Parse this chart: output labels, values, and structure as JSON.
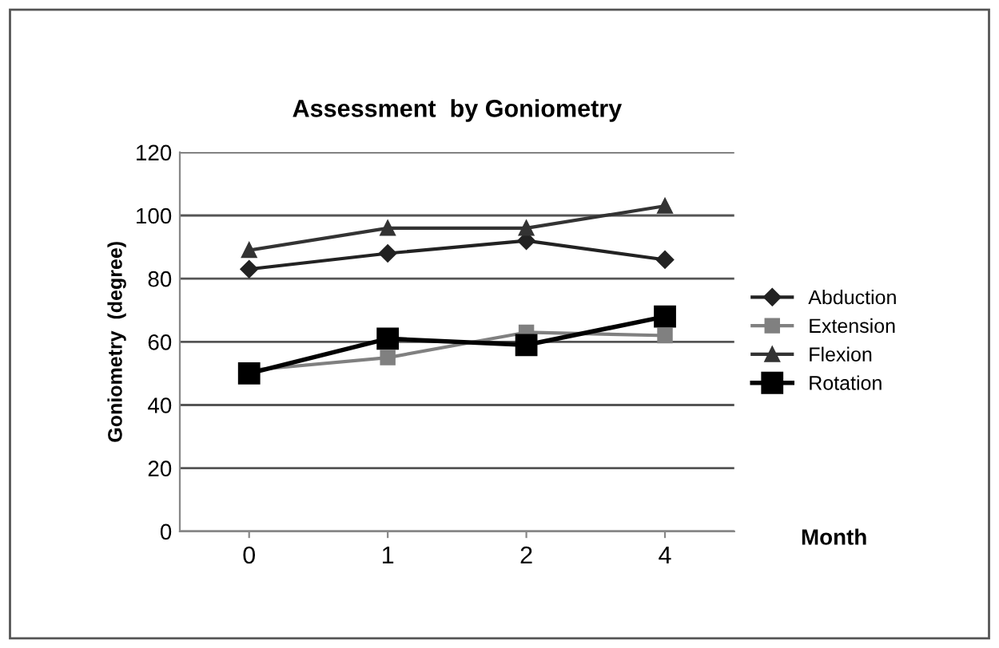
{
  "chart_data": {
    "type": "line",
    "title": "Assessment  by Goniometry",
    "xlabel": "Month",
    "ylabel": "Goniometry  (degree)",
    "categories": [
      "0",
      "1",
      "2",
      "4"
    ],
    "series": [
      {
        "name": "Abduction",
        "color": "#222222",
        "marker": "diamond",
        "values": [
          83,
          88,
          92,
          86
        ]
      },
      {
        "name": "Extension",
        "color": "#808080",
        "marker": "square",
        "values": [
          51,
          55,
          63,
          62
        ]
      },
      {
        "name": "Flexion",
        "color": "#333333",
        "marker": "triangle",
        "values": [
          89,
          96,
          96,
          103
        ]
      },
      {
        "name": "Rotation",
        "color": "#000000",
        "marker": "square",
        "values": [
          50,
          61,
          59,
          68
        ]
      }
    ],
    "ylim": [
      0,
      120
    ],
    "yticks": [
      0,
      20,
      40,
      60,
      80,
      100,
      120
    ],
    "grid": "y",
    "legend": "right",
    "line_style": "solid"
  }
}
